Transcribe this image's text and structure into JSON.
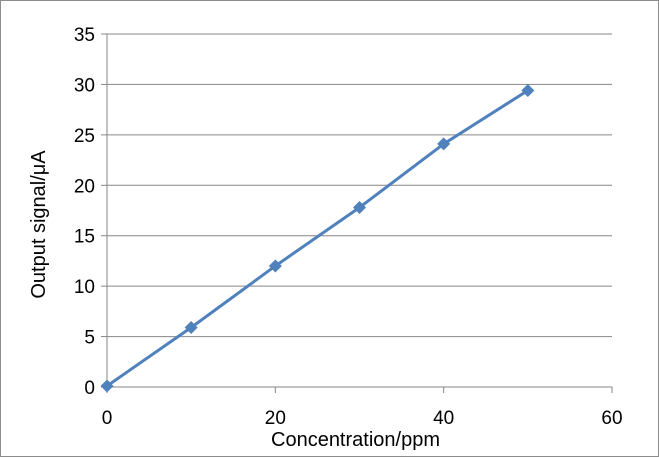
{
  "chart_data": {
    "type": "line",
    "title": "",
    "xlabel": "Concentration/ppm",
    "ylabel": "Output signal/μA",
    "xlim": [
      0,
      60
    ],
    "ylim": [
      0,
      35
    ],
    "xticks": [
      "0",
      "20",
      "40",
      "60"
    ],
    "yticks": [
      "0",
      "5",
      "10",
      "15",
      "20",
      "25",
      "30",
      "35"
    ],
    "grid": "horizontal",
    "legend": "none",
    "series": [
      {
        "color": "#4f81bd",
        "marker": "diamond",
        "x": [
          0,
          10,
          20,
          30,
          40,
          50
        ],
        "y": [
          0.1,
          5.9,
          12.0,
          17.8,
          24.1,
          29.4
        ]
      }
    ]
  }
}
